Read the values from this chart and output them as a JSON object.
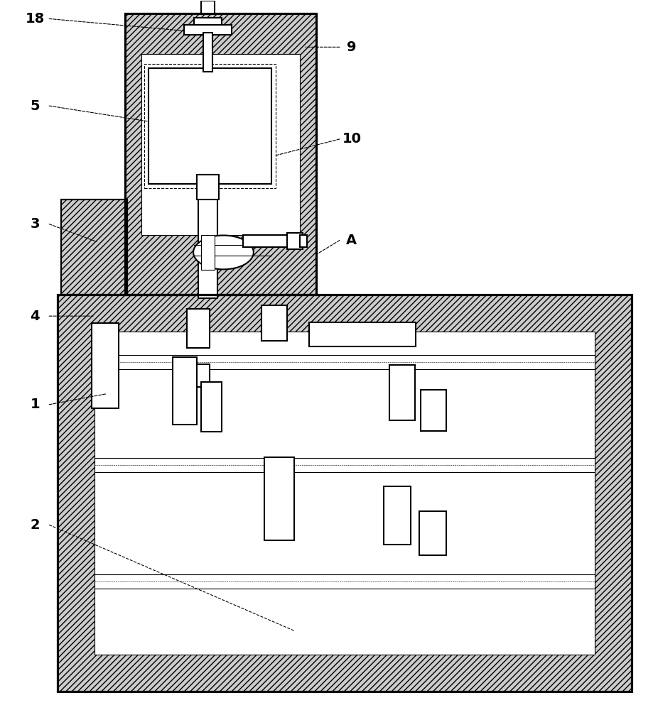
{
  "bg_color": "#ffffff",
  "line_color": "#000000",
  "hatch_fc": "#cccccc",
  "line_width": 1.5,
  "thin_line": 0.8,
  "labels": [
    "18",
    "9",
    "5",
    "10",
    "3",
    "A",
    "4",
    "1",
    "2"
  ]
}
